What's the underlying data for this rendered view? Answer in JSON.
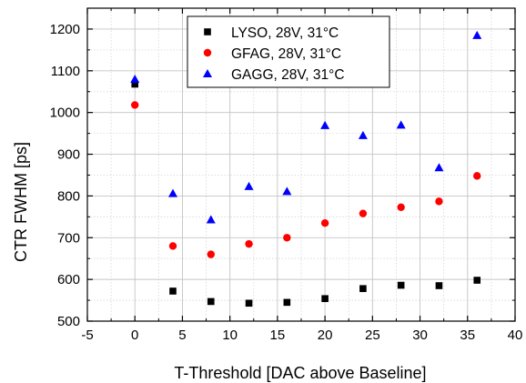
{
  "chart_data": {
    "type": "scatter",
    "xlabel": "T-Threshold [DAC above Baseline]",
    "ylabel": "CTR FWHM [ps]",
    "xlim": [
      -5,
      40
    ],
    "ylim": [
      500,
      1250
    ],
    "xticks": [
      -5,
      0,
      5,
      10,
      15,
      20,
      25,
      30,
      35,
      40
    ],
    "yticks": [
      500,
      600,
      700,
      800,
      900,
      1000,
      1100,
      1200
    ],
    "grid": true,
    "legend_position": "top-center",
    "series": [
      {
        "name": "LYSO, 28V, 31°C",
        "marker": "square",
        "color": "#000000",
        "x": [
          0,
          4,
          8,
          12,
          16,
          20,
          24,
          28,
          32,
          36
        ],
        "y": [
          1068,
          572,
          547,
          543,
          545,
          554,
          578,
          586,
          585,
          598
        ]
      },
      {
        "name": "GFAG, 28V, 31°C",
        "marker": "circle",
        "color": "#ff0000",
        "x": [
          0,
          4,
          8,
          12,
          16,
          20,
          24,
          28,
          32,
          36
        ],
        "y": [
          1018,
          680,
          660,
          685,
          700,
          735,
          758,
          773,
          787,
          848
        ]
      },
      {
        "name": "GAGG, 28V, 31°C",
        "marker": "triangle",
        "color": "#0000ff",
        "x": [
          0,
          4,
          8,
          12,
          16,
          20,
          24,
          28,
          32,
          36
        ],
        "y": [
          1080,
          806,
          743,
          823,
          811,
          969,
          945,
          970,
          868,
          1185
        ]
      }
    ]
  }
}
